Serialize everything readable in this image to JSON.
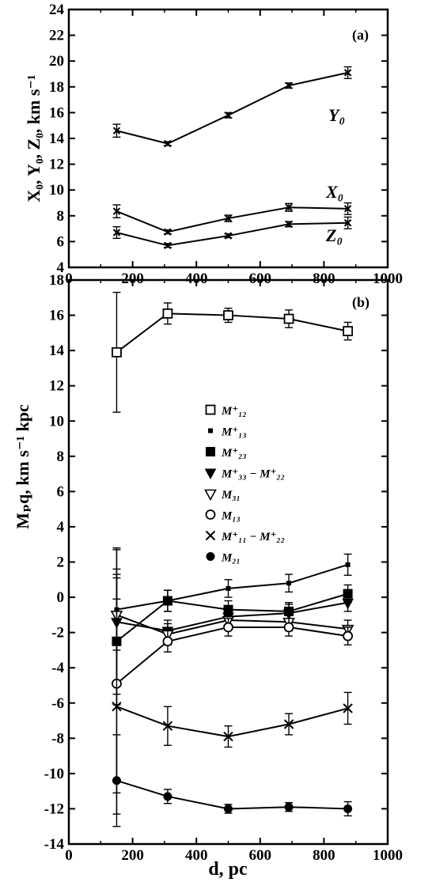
{
  "chart_data": [
    {
      "id": "a",
      "type": "line",
      "panel_label": "(a)",
      "ylabel": "X₀, Y₀, Z₀, km s⁻¹",
      "xlabel": "",
      "xlim": [
        0,
        1000
      ],
      "ylim": [
        4,
        24
      ],
      "xticks": [
        0,
        200,
        400,
        600,
        800,
        1000
      ],
      "yticks": [
        4,
        6,
        8,
        10,
        12,
        14,
        16,
        18,
        20,
        22,
        24
      ],
      "grid": false,
      "x": [
        150,
        310,
        500,
        690,
        875
      ],
      "series": [
        {
          "name": "Y₀",
          "marker": "x",
          "values": [
            14.6,
            13.6,
            15.8,
            18.1,
            19.1
          ],
          "errors": [
            0.5,
            0.15,
            0.2,
            0.2,
            0.45
          ]
        },
        {
          "name": "X₀",
          "marker": "x",
          "values": [
            8.35,
            6.75,
            7.8,
            8.65,
            8.55
          ],
          "errors": [
            0.5,
            0.15,
            0.25,
            0.3,
            0.45
          ]
        },
        {
          "name": "Z₀",
          "marker": "x",
          "values": [
            6.7,
            5.7,
            6.45,
            7.35,
            7.45
          ],
          "errors": [
            0.45,
            0.15,
            0.15,
            0.2,
            0.45
          ]
        }
      ]
    },
    {
      "id": "b",
      "type": "line",
      "panel_label": "(b)",
      "ylabel": "Mₚq, km s⁻¹ kpc",
      "xlabel": "d, pc",
      "xlim": [
        0,
        1000
      ],
      "ylim": [
        -14,
        18
      ],
      "xticks": [
        0,
        200,
        400,
        600,
        800,
        1000
      ],
      "yticks": [
        -14,
        -12,
        -10,
        -8,
        -6,
        -4,
        -2,
        0,
        2,
        4,
        6,
        8,
        10,
        12,
        14,
        16,
        18
      ],
      "grid": false,
      "x": [
        150,
        310,
        500,
        690,
        875
      ],
      "series": [
        {
          "name": "M⁺₁₂",
          "marker": "open-square",
          "values": [
            13.9,
            16.1,
            16.0,
            15.8,
            15.1
          ],
          "errors": [
            3.4,
            0.6,
            0.4,
            0.5,
            0.5
          ]
        },
        {
          "name": "M⁺₁₃",
          "marker": "small-dot",
          "values": [
            -0.7,
            -0.2,
            0.5,
            0.8,
            1.85
          ],
          "errors": [
            2.3,
            0.6,
            0.5,
            0.5,
            0.6
          ]
        },
        {
          "name": "M⁺₂₃",
          "marker": "filled-square",
          "values": [
            -2.5,
            -0.2,
            -0.7,
            -0.8,
            0.2
          ],
          "errors": [
            3.6,
            0.6,
            0.5,
            0.5,
            0.5
          ]
        },
        {
          "name": "M⁺₃₃ − M⁺₂₂",
          "marker": "filled-triangle",
          "values": [
            -1.4,
            -1.9,
            -1.1,
            -0.9,
            -0.3
          ],
          "errors": [
            4.1,
            0.6,
            0.5,
            0.5,
            0.5
          ]
        },
        {
          "name": "M₃₁",
          "marker": "open-triangle",
          "values": [
            -1.0,
            -2.1,
            -1.3,
            -1.4,
            -1.8
          ],
          "errors": [
            3.8,
            0.6,
            0.5,
            0.5,
            0.5
          ]
        },
        {
          "name": "M₁₃",
          "marker": "open-circle",
          "values": [
            -4.9,
            -2.5,
            -1.7,
            -1.7,
            -2.2
          ],
          "errors": [
            6.2,
            0.6,
            0.5,
            0.5,
            0.5
          ]
        },
        {
          "name": "M⁺₁₁ − M⁺₂₂",
          "marker": "x",
          "values": [
            -6.2,
            -7.3,
            -7.9,
            -7.2,
            -6.3
          ],
          "errors": [
            6.1,
            1.1,
            0.6,
            0.6,
            0.9
          ]
        },
        {
          "name": "M₂₁",
          "marker": "filled-circle",
          "values": [
            -10.4,
            -11.3,
            -12.0,
            -11.9,
            -12.0
          ],
          "errors": [
            2.6,
            0.4,
            0.25,
            0.25,
            0.4
          ]
        }
      ]
    }
  ]
}
